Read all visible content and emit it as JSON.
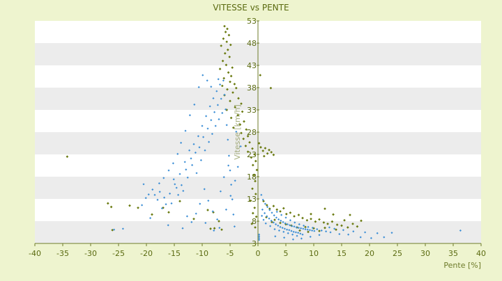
{
  "chart_data": {
    "type": "scatter",
    "title": "VITESSE vs PENTE",
    "xlabel": "Pente [%]",
    "ylabel": "Vitesse [km/h]",
    "xlim": [
      -40,
      40
    ],
    "ylim": [
      3,
      53
    ],
    "x_ticks": [
      -40,
      -35,
      -30,
      -25,
      -20,
      -15,
      -10,
      -5,
      0,
      5,
      10,
      15,
      20,
      25,
      30,
      35,
      40
    ],
    "y_ticks": [
      3,
      8,
      13,
      18,
      23,
      28,
      33,
      38,
      43,
      48,
      53
    ],
    "grid": "horizontal alternating bands",
    "legend": "none",
    "series": [
      {
        "color": "#6a7a10",
        "points": [
          [
            -34.2,
            22.5
          ],
          [
            -26.9,
            12.0
          ],
          [
            -26.3,
            11.2
          ],
          [
            -26.1,
            6.0
          ],
          [
            -23.0,
            11.5
          ],
          [
            -21.5,
            11.0
          ],
          [
            -19.0,
            9.5
          ],
          [
            -17.0,
            11.0
          ],
          [
            -16.0,
            10.0
          ],
          [
            -14.0,
            12.5
          ],
          [
            -11.5,
            8.5
          ],
          [
            -9.0,
            10.5
          ],
          [
            -8.5,
            6.3
          ],
          [
            -8.0,
            10.0
          ],
          [
            -7.8,
            6.4
          ],
          [
            -7.0,
            8.0
          ],
          [
            -6.5,
            6.1
          ],
          [
            -6.0,
            51.8
          ],
          [
            -5.8,
            50.5
          ],
          [
            -5.5,
            51.2
          ],
          [
            -5.2,
            49.8
          ],
          [
            -6.2,
            49.0
          ],
          [
            -5.6,
            48.3
          ],
          [
            -4.9,
            47.6
          ],
          [
            -5.4,
            46.5
          ],
          [
            -6.6,
            47.4
          ],
          [
            -5.9,
            45.7
          ],
          [
            -5.1,
            44.9
          ],
          [
            -6.3,
            44.0
          ],
          [
            -5.7,
            43.1
          ],
          [
            -4.6,
            42.5
          ],
          [
            -6.8,
            42.2
          ],
          [
            -5.3,
            41.4
          ],
          [
            -4.8,
            40.6
          ],
          [
            -6.1,
            40.1
          ],
          [
            -5.0,
            39.3
          ],
          [
            -4.2,
            38.8
          ],
          [
            -6.4,
            38.4
          ],
          [
            -5.5,
            37.6
          ],
          [
            -3.9,
            37.9
          ],
          [
            -4.5,
            36.9
          ],
          [
            -6.0,
            36.3
          ],
          [
            -3.5,
            35.6
          ],
          [
            -5.0,
            35.0
          ],
          [
            -3.0,
            34.4
          ],
          [
            -4.1,
            33.6
          ],
          [
            -5.6,
            33.0
          ],
          [
            -2.8,
            32.6
          ],
          [
            -3.6,
            31.8
          ],
          [
            -4.8,
            31.2
          ],
          [
            -2.5,
            30.4
          ],
          [
            -3.2,
            29.7
          ],
          [
            -4.4,
            29.0
          ],
          [
            -2.1,
            28.6
          ],
          [
            -3.0,
            27.8
          ],
          [
            -1.8,
            27.1
          ],
          [
            -2.6,
            26.5
          ],
          [
            -1.5,
            25.7
          ],
          [
            -2.2,
            24.9
          ],
          [
            -1.0,
            24.3
          ],
          [
            -1.8,
            23.6
          ],
          [
            -0.6,
            23.0
          ],
          [
            -1.2,
            22.3
          ],
          [
            -0.4,
            21.5
          ],
          [
            -0.9,
            20.6
          ],
          [
            -0.2,
            19.5
          ],
          [
            -0.7,
            18.4
          ],
          [
            -0.5,
            17.0
          ],
          [
            -1.0,
            15.3
          ],
          [
            -0.4,
            14.1
          ],
          [
            -1.3,
            12.6
          ],
          [
            -0.6,
            11.0
          ],
          [
            -0.9,
            9.8
          ],
          [
            -0.3,
            9.0
          ],
          [
            -1.1,
            7.4
          ],
          [
            -0.5,
            6.6
          ],
          [
            0.2,
            25.5
          ],
          [
            0.5,
            24.6
          ],
          [
            0.9,
            23.8
          ],
          [
            1.3,
            24.4
          ],
          [
            1.7,
            23.2
          ],
          [
            2.0,
            24.0
          ],
          [
            2.4,
            23.5
          ],
          [
            2.8,
            22.9
          ],
          [
            1.1,
            22.6
          ],
          [
            0.4,
            40.8
          ],
          [
            2.3,
            37.9
          ],
          [
            1.0,
            12.5
          ],
          [
            1.6,
            11.6
          ],
          [
            2.1,
            10.8
          ],
          [
            2.8,
            11.4
          ],
          [
            3.4,
            10.6
          ],
          [
            4.0,
            10.2
          ],
          [
            4.6,
            10.9
          ],
          [
            5.1,
            9.6
          ],
          [
            5.8,
            9.9
          ],
          [
            6.5,
            9.1
          ],
          [
            7.3,
            9.4
          ],
          [
            8.0,
            8.7
          ],
          [
            8.8,
            8.2
          ],
          [
            9.5,
            8.5
          ],
          [
            10.3,
            7.9
          ],
          [
            11.0,
            8.4
          ],
          [
            11.8,
            7.7
          ],
          [
            12.5,
            7.4
          ],
          [
            13.3,
            7.9
          ],
          [
            14.2,
            7.2
          ],
          [
            15.0,
            7.0
          ],
          [
            16.1,
            6.6
          ],
          [
            17.0,
            7.4
          ],
          [
            17.8,
            6.8
          ],
          [
            12.0,
            6.5
          ],
          [
            10.0,
            6.4
          ],
          [
            8.5,
            6.7
          ],
          [
            7.0,
            6.6
          ],
          [
            6.0,
            7.0
          ],
          [
            5.0,
            7.3
          ],
          [
            4.0,
            7.6
          ],
          [
            3.0,
            8.3
          ],
          [
            2.5,
            7.8
          ],
          [
            1.5,
            8.9
          ],
          [
            13.5,
            9.5
          ],
          [
            12.0,
            10.8
          ],
          [
            9.5,
            9.6
          ],
          [
            11.0,
            5.8
          ],
          [
            9.0,
            5.6
          ],
          [
            7.5,
            5.9
          ],
          [
            15.5,
            8.2
          ],
          [
            18.5,
            8.1
          ],
          [
            16.5,
            9.4
          ],
          [
            14.0,
            6.1
          ]
        ]
      },
      {
        "color": "#3d8fd6",
        "points": [
          [
            -25.8,
            6.1
          ],
          [
            -24.2,
            6.3
          ],
          [
            -20.8,
            11.6
          ],
          [
            -20.5,
            16.3
          ],
          [
            -20.1,
            13.2
          ],
          [
            -19.6,
            14.0
          ],
          [
            -19.3,
            8.7
          ],
          [
            -18.9,
            15.1
          ],
          [
            -18.5,
            13.9
          ],
          [
            -18.0,
            12.8
          ],
          [
            -17.6,
            14.6
          ],
          [
            -17.2,
            10.9
          ],
          [
            -16.8,
            13.3
          ],
          [
            -16.5,
            11.8
          ],
          [
            -16.1,
            7.1
          ],
          [
            -15.8,
            14.2
          ],
          [
            -15.5,
            12.0
          ],
          [
            -15.1,
            17.4
          ],
          [
            -14.9,
            16.3
          ],
          [
            -14.6,
            15.5
          ],
          [
            -14.3,
            13.9
          ],
          [
            -14.0,
            18.6
          ],
          [
            -13.7,
            16.1
          ],
          [
            -13.4,
            14.8
          ],
          [
            -13.1,
            21.3
          ],
          [
            -12.9,
            19.6
          ],
          [
            -12.6,
            17.8
          ],
          [
            -12.3,
            23.9
          ],
          [
            -12.0,
            22.1
          ],
          [
            -11.8,
            20.6
          ],
          [
            -11.5,
            25.3
          ],
          [
            -11.2,
            23.4
          ],
          [
            -11.0,
            18.8
          ],
          [
            -10.7,
            27.1
          ],
          [
            -10.5,
            24.6
          ],
          [
            -10.2,
            21.7
          ],
          [
            -10.0,
            29.4
          ],
          [
            -9.8,
            26.9
          ],
          [
            -9.5,
            23.9
          ],
          [
            -9.3,
            31.6
          ],
          [
            -9.0,
            28.8
          ],
          [
            -8.8,
            25.8
          ],
          [
            -8.6,
            33.8
          ],
          [
            -8.4,
            30.7
          ],
          [
            -8.2,
            27.6
          ],
          [
            -8.0,
            35.6
          ],
          [
            -7.8,
            32.5
          ],
          [
            -7.6,
            29.4
          ],
          [
            -7.4,
            37.2
          ],
          [
            -7.2,
            34.1
          ],
          [
            -7.0,
            30.9
          ],
          [
            -6.8,
            38.7
          ],
          [
            -6.6,
            35.5
          ],
          [
            -6.4,
            32.3
          ],
          [
            -6.2,
            39.6
          ],
          [
            -6.0,
            36.4
          ],
          [
            -5.8,
            33.1
          ],
          [
            -5.6,
            29.6
          ],
          [
            -5.4,
            26.3
          ],
          [
            -5.2,
            22.7
          ],
          [
            -5.0,
            19.4
          ],
          [
            -4.8,
            16.2
          ],
          [
            -4.6,
            12.9
          ],
          [
            -4.4,
            9.5
          ],
          [
            -4.2,
            6.8
          ],
          [
            -9.9,
            40.8
          ],
          [
            -9.1,
            39.6
          ],
          [
            -8.4,
            38.2
          ],
          [
            -7.1,
            39.9
          ],
          [
            -10.6,
            38.1
          ],
          [
            -11.4,
            34.2
          ],
          [
            -12.2,
            31.8
          ],
          [
            -13.0,
            28.3
          ],
          [
            -13.8,
            25.6
          ],
          [
            -14.4,
            23.1
          ],
          [
            -15.2,
            21.0
          ],
          [
            -16.0,
            19.4
          ],
          [
            -16.9,
            17.7
          ],
          [
            -17.7,
            16.5
          ],
          [
            -9.6,
            15.2
          ],
          [
            -8.9,
            12.6
          ],
          [
            -8.1,
            10.2
          ],
          [
            -7.3,
            8.4
          ],
          [
            -6.7,
            14.7
          ],
          [
            -6.1,
            17.9
          ],
          [
            -5.3,
            20.5
          ],
          [
            -10.4,
            11.9
          ],
          [
            -11.1,
            9.7
          ],
          [
            -11.9,
            7.8
          ],
          [
            -12.7,
            9.1
          ],
          [
            -13.5,
            6.4
          ],
          [
            -9.4,
            7.6
          ],
          [
            -7.9,
            5.9
          ],
          [
            -6.9,
            6.5
          ],
          [
            -5.7,
            10.6
          ],
          [
            -4.9,
            13.7
          ],
          [
            -4.1,
            17.1
          ],
          [
            -3.6,
            20.2
          ],
          [
            -3.1,
            24.8
          ],
          [
            -3.9,
            28.1
          ],
          [
            0.6,
            13.9
          ],
          [
            0.9,
            12.8
          ],
          [
            1.3,
            11.9
          ],
          [
            1.7,
            11.2
          ],
          [
            2.1,
            10.5
          ],
          [
            2.5,
            9.9
          ],
          [
            2.9,
            9.3
          ],
          [
            3.3,
            8.8
          ],
          [
            3.7,
            8.4
          ],
          [
            4.1,
            8.1
          ],
          [
            4.5,
            7.8
          ],
          [
            4.9,
            7.5
          ],
          [
            5.3,
            7.3
          ],
          [
            5.7,
            7.1
          ],
          [
            6.1,
            6.9
          ],
          [
            6.5,
            6.8
          ],
          [
            6.9,
            6.6
          ],
          [
            7.3,
            6.5
          ],
          [
            7.7,
            6.4
          ],
          [
            8.1,
            6.3
          ],
          [
            8.5,
            6.2
          ],
          [
            8.9,
            6.1
          ],
          [
            9.3,
            6.0
          ],
          [
            9.7,
            5.9
          ],
          [
            10.1,
            5.8
          ],
          [
            0.8,
            10.6
          ],
          [
            1.2,
            9.8
          ],
          [
            1.6,
            9.1
          ],
          [
            2.0,
            8.6
          ],
          [
            2.4,
            8.1
          ],
          [
            2.8,
            7.7
          ],
          [
            3.2,
            7.3
          ],
          [
            3.6,
            7.0
          ],
          [
            4.0,
            6.7
          ],
          [
            4.4,
            6.5
          ],
          [
            4.8,
            6.3
          ],
          [
            5.2,
            6.1
          ],
          [
            5.6,
            6.0
          ],
          [
            6.0,
            5.8
          ],
          [
            6.4,
            5.6
          ],
          [
            6.8,
            5.5
          ],
          [
            7.2,
            5.4
          ],
          [
            7.6,
            5.2
          ],
          [
            8.0,
            5.0
          ],
          [
            3.0,
            6.2
          ],
          [
            3.8,
            5.9
          ],
          [
            4.6,
            5.6
          ],
          [
            5.4,
            5.3
          ],
          [
            6.2,
            5.0
          ],
          [
            7.0,
            4.7
          ],
          [
            2.2,
            6.9
          ],
          [
            1.4,
            7.5
          ],
          [
            1.0,
            8.3
          ],
          [
            0.7,
            9.2
          ],
          [
            3.4,
            10.1
          ],
          [
            4.2,
            9.4
          ],
          [
            5.0,
            8.8
          ],
          [
            5.8,
            8.2
          ],
          [
            6.6,
            7.7
          ],
          [
            7.4,
            7.3
          ],
          [
            8.2,
            7.0
          ],
          [
            9.0,
            6.7
          ],
          [
            9.8,
            6.5
          ],
          [
            10.6,
            6.2
          ],
          [
            11.4,
            5.9
          ],
          [
            12.2,
            5.7
          ],
          [
            13.0,
            5.5
          ],
          [
            14.6,
            5.1
          ],
          [
            16.2,
            5.0
          ],
          [
            18.4,
            4.4
          ],
          [
            20.3,
            4.2
          ],
          [
            22.6,
            4.4
          ],
          [
            36.3,
            5.9
          ],
          [
            11.0,
            4.9
          ],
          [
            9.4,
            4.5
          ],
          [
            7.8,
            4.1
          ],
          [
            6.3,
            3.9
          ],
          [
            4.7,
            4.3
          ],
          [
            3.1,
            4.6
          ],
          [
            0.2,
            5.0
          ],
          [
            0.2,
            4.6
          ],
          [
            0.2,
            4.2
          ],
          [
            0.2,
            3.8
          ],
          [
            12.8,
            6.6
          ],
          [
            13.7,
            6.3
          ],
          [
            15.3,
            6.0
          ],
          [
            17.1,
            5.7
          ],
          [
            19.2,
            5.5
          ],
          [
            21.4,
            5.3
          ],
          [
            24.0,
            5.4
          ]
        ]
      }
    ]
  }
}
